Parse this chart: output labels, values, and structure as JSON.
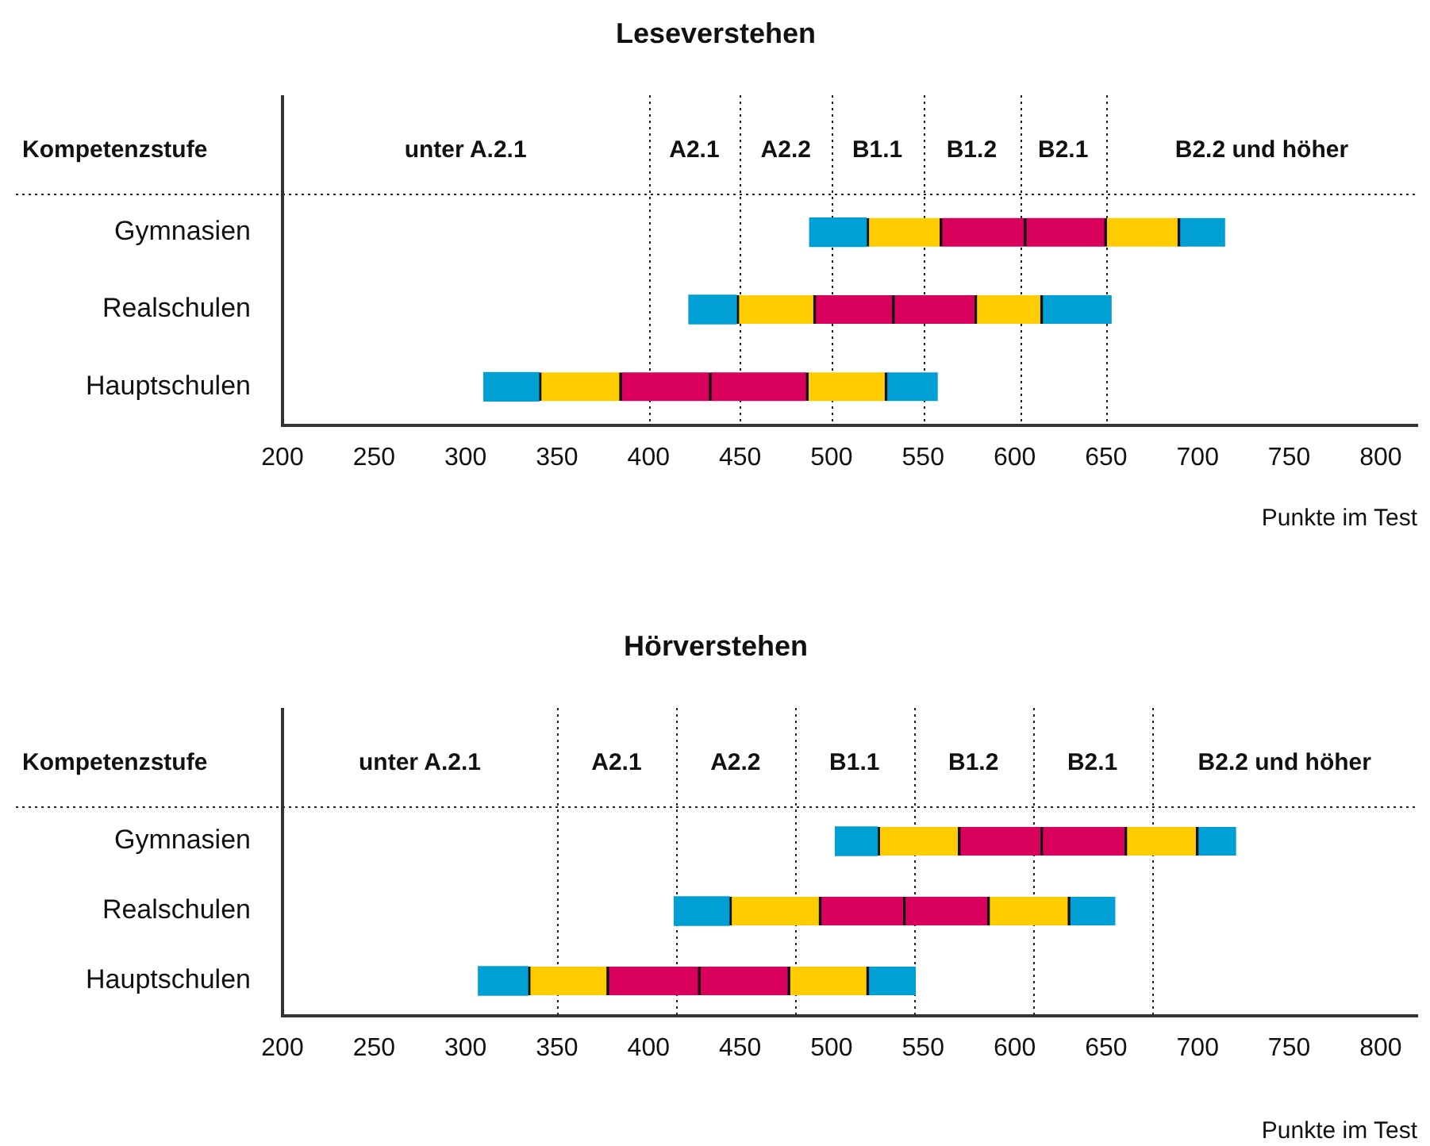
{
  "chart_data": [
    {
      "type": "bar",
      "orientation": "horizontal",
      "title": "Leseverstehen",
      "xlabel": "Punkte im Test",
      "annotations": [
        "Kompetenzstufe",
        "unter A.2.1",
        "A2.1",
        "A2.2",
        "B1.1",
        "B1.2",
        "B2.1",
        "B2.2 und höher"
      ],
      "categories": [
        "Gymnasien",
        "Realschulen",
        "Hauptschulen"
      ],
      "series": [
        {
          "color": "#009fd4",
          "base": [
            488,
            422,
            310
          ],
          "values": [
            31,
            26,
            30
          ]
        },
        {
          "color": "#ffcc00",
          "base": [
            519,
            448,
            340
          ],
          "values": [
            40,
            42,
            44
          ]
        },
        {
          "color": "#d9005b",
          "base": [
            559,
            490,
            384
          ],
          "values": [
            46,
            43,
            49
          ]
        },
        {
          "color": "#d9005b",
          "base": [
            605,
            533,
            433
          ],
          "values": [
            44,
            45,
            53
          ]
        },
        {
          "color": "#ffcc00",
          "base": [
            649,
            578,
            486
          ],
          "values": [
            40,
            36,
            43
          ]
        },
        {
          "color": "#009fd4",
          "base": [
            689,
            614,
            529
          ],
          "values": [
            26,
            39,
            29
          ]
        }
      ],
      "xlim": [
        200,
        820
      ],
      "xticks": [
        200,
        250,
        300,
        350,
        400,
        450,
        500,
        550,
        600,
        650,
        700,
        750,
        800
      ],
      "ref_lines": [
        {
          "axis": "x",
          "value": 400,
          "line_style": "dotted"
        },
        {
          "axis": "x",
          "value": 450,
          "line_style": "dotted"
        },
        {
          "axis": "x",
          "value": 500,
          "line_style": "dotted"
        },
        {
          "axis": "x",
          "value": 550,
          "line_style": "dotted"
        },
        {
          "axis": "x",
          "value": 603,
          "line_style": "dotted"
        },
        {
          "axis": "x",
          "value": 650,
          "line_style": "dotted"
        }
      ],
      "grid": false,
      "legend": false
    },
    {
      "type": "bar",
      "orientation": "horizontal",
      "title": "Hörverstehen",
      "xlabel": "Punkte im Test",
      "annotations": [
        "Kompetenzstufe",
        "unter A.2.1",
        "A2.1",
        "A2.2",
        "B1.1",
        "B1.2",
        "B2.1",
        "B2.2 und höher"
      ],
      "categories": [
        "Gymnasien",
        "Realschulen",
        "Hauptschulen"
      ],
      "series": [
        {
          "color": "#009fd4",
          "base": [
            502,
            414,
            307
          ],
          "values": [
            23,
            30,
            27
          ]
        },
        {
          "color": "#ffcc00",
          "base": [
            525,
            444,
            334
          ],
          "values": [
            44,
            49,
            43
          ]
        },
        {
          "color": "#d9005b",
          "base": [
            569,
            493,
            377
          ],
          "values": [
            45,
            46,
            50
          ]
        },
        {
          "color": "#d9005b",
          "base": [
            614,
            539,
            427
          ],
          "values": [
            46,
            46,
            49
          ]
        },
        {
          "color": "#ffcc00",
          "base": [
            660,
            585,
            476
          ],
          "values": [
            39,
            44,
            43
          ]
        },
        {
          "color": "#009fd4",
          "base": [
            699,
            629,
            519
          ],
          "values": [
            22,
            26,
            27
          ]
        }
      ],
      "xlim": [
        200,
        820
      ],
      "xticks": [
        200,
        250,
        300,
        350,
        400,
        450,
        500,
        550,
        600,
        650,
        700,
        750,
        800
      ],
      "ref_lines": [
        {
          "axis": "x",
          "value": 350,
          "line_style": "dotted"
        },
        {
          "axis": "x",
          "value": 415,
          "line_style": "dotted"
        },
        {
          "axis": "x",
          "value": 480,
          "line_style": "dotted"
        },
        {
          "axis": "x",
          "value": 545,
          "line_style": "dotted"
        },
        {
          "axis": "x",
          "value": 610,
          "line_style": "dotted"
        },
        {
          "axis": "x",
          "value": 675,
          "line_style": "dotted"
        }
      ],
      "grid": false,
      "legend": false
    }
  ]
}
